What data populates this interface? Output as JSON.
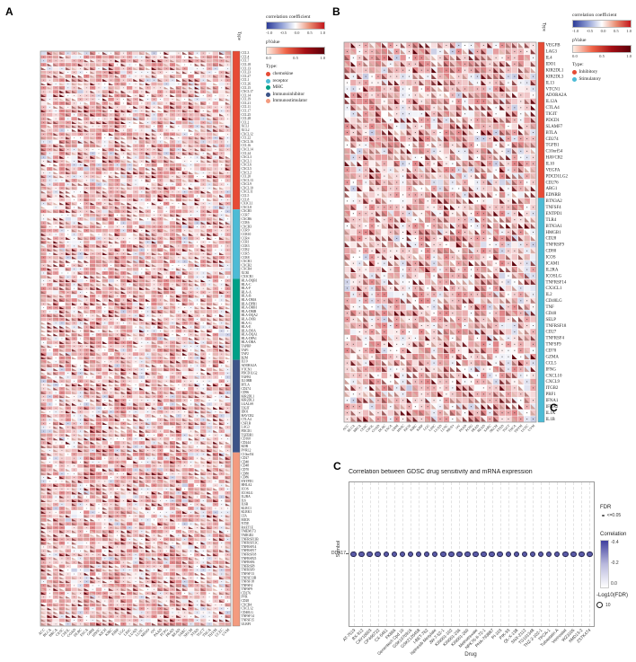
{
  "panels": {
    "a": {
      "label": "A",
      "type_axis_label": "Type",
      "legend": {
        "corr_title": "correlation coefficient",
        "corr_ticks": [
          "-1.0",
          "-0.5",
          "0.0",
          "0.5",
          "1.0"
        ],
        "pval_title": "pValue",
        "pval_ticks": [
          "0.0",
          "0.5",
          "1.0"
        ],
        "type_title": "Type:",
        "items": [
          {
            "label": "chemokine",
            "color": "#E64B35"
          },
          {
            "label": "receptor",
            "color": "#4DBBD5"
          },
          {
            "label": "MHC",
            "color": "#00A087"
          },
          {
            "label": "Immunoinhibitor",
            "color": "#3C5488"
          },
          {
            "label": "Immunostimulator",
            "color": "#F39B7F"
          }
        ]
      }
    },
    "b": {
      "label": "B",
      "type_axis_label": "Type",
      "stray_label": "C",
      "legend": {
        "corr_title": "correlation coefficient",
        "corr_ticks": [
          "-1.0",
          "-0.5",
          "0.0",
          "0.5",
          "1.0"
        ],
        "pval_title": "pValue",
        "pval_ticks": [
          "0.0",
          "0.5",
          "1.0"
        ],
        "type_title": "Type:",
        "items": [
          {
            "label": "Inhibitory",
            "color": "#E64B35"
          },
          {
            "label": "Stimulatory",
            "color": "#4DBBD5"
          }
        ]
      }
    },
    "c": {
      "label": "C",
      "title": "Correlation between GDSC drug sensitivity and mRNA expression",
      "xlabel": "Drug",
      "ylabel": "Symbol",
      "gene": "DDX17",
      "legend": {
        "fdr_title": "FDR",
        "fdr_item": "<=0.05",
        "corr_title": "Correlation",
        "corr_ticks": [
          "-0.4",
          "-0.2",
          "0.0"
        ],
        "size_title": "-Log10(FDR)",
        "size_item": "10"
      }
    }
  },
  "chart_data": [
    {
      "panel": "A",
      "type": "heatmap",
      "cell_glyphs": {
        "square_fill": "correlation coefficient",
        "lower_left_triangle": "pValue",
        "dot": "non-significant marker"
      },
      "corr_range": [
        -1.0,
        1.0
      ],
      "pval_range": [
        0.0,
        1.0
      ],
      "columns": [
        "ACC",
        "BLCA",
        "BRCA",
        "CESC",
        "CHOL",
        "COAD",
        "DLBC",
        "ESCA",
        "GBM",
        "HNSC",
        "KICH",
        "KIRC",
        "KIRP",
        "LGG",
        "LIHC",
        "LUAD",
        "LUSC",
        "MESO",
        "OV",
        "PAAD",
        "PCPG",
        "PRAD",
        "READ",
        "SARC",
        "SKCM",
        "STAD",
        "TGCT",
        "THCA",
        "THYM",
        "UCEC",
        "UVM"
      ],
      "row_groups": [
        {
          "name": "chemokine",
          "color": "#E64B35",
          "genes": [
            "CCL3",
            "CCL4",
            "CCL7",
            "CCL18",
            "CCL13",
            "CCL23",
            "CCL27",
            "CCL1",
            "CCL26",
            "CCL15",
            "CXCL17",
            "CCL14",
            "CCL19",
            "CCL21",
            "CCL11",
            "CCL17",
            "CCL25",
            "CCL28",
            "CCL2",
            "XCL1",
            "XCL2",
            "CXCL12",
            "CCL22",
            "CXCL16",
            "CCL16",
            "CXCL14",
            "CCL24",
            "CXCL3",
            "CXCL1",
            "CXCL6",
            "CXCL5",
            "CXCL2",
            "CCL20",
            "CXCL13",
            "CXCL9",
            "CXCL10",
            "CXCL11",
            "CCL5",
            "CCL8",
            "CX3CL1",
            "CXCL8"
          ]
        },
        {
          "name": "receptor",
          "color": "#4DBBD5",
          "genes": [
            "CXCR5",
            "CCR7",
            "CXCR6",
            "CCR6",
            "CXCR3",
            "CCR9",
            "CCR10",
            "CCR4",
            "CCR1",
            "CCR3",
            "CCR2",
            "CCR5",
            "CCR8",
            "CXCR1",
            "CXCR2",
            "CXCR4",
            "XCR1",
            "CX3CR1"
          ]
        },
        {
          "name": "MHC",
          "color": "#00A087",
          "genes": [
            "HLA-DQB1",
            "HLA-C",
            "HLA-F",
            "HLA-A",
            "HLA-B",
            "HLA-DMA",
            "HLA-DPB1",
            "HLA-DRB1",
            "HLA-DMB",
            "HLA-DQA2",
            "HLA-DOB",
            "HLA-G",
            "HLA-E",
            "HLA-DOA",
            "HLA-DQA1",
            "HLA-DPA1",
            "HLA-DRA",
            "TAPBP",
            "TAP1",
            "TAP2",
            "B2M"
          ]
        },
        {
          "name": "Immunoinhibitor",
          "color": "#3C5488",
          "genes": [
            "IL10",
            "ADORA2A",
            "VTCN1",
            "PDCD1LG2",
            "TGFB1",
            "IL10RB",
            "BTLA",
            "CD274",
            "CD96",
            "KIR2DL1",
            "KIR2DL3",
            "LGALS9",
            "TIGIT",
            "IDO1",
            "HAVCR2",
            "CTLA4",
            "CSF1R",
            "LAG3",
            "PDCD1",
            "TGFBR1",
            "CD160",
            "CD244",
            "KDR",
            "PVRL2"
          ]
        },
        {
          "name": "Immunostimulator",
          "color": "#F39B7F",
          "genes": [
            "C10orf54",
            "CD27",
            "CD40",
            "CD48",
            "CD70",
            "CD80",
            "CD86",
            "ENTPD1",
            "HHLA2",
            "ICOS",
            "ICOSLG",
            "IL2RA",
            "IL6",
            "IL6R",
            "KLRC1",
            "KLRK1",
            "LTA",
            "MICB",
            "NT5E",
            "RAET1E",
            "TMEM173",
            "TMIGD2",
            "TNFRSF13B",
            "TNFRSF13C",
            "TNFRSF14",
            "TNFRSF17",
            "TNFRSF18",
            "TNFRSF25",
            "TNFRSF4",
            "TNFRSF8",
            "TNFRSF9",
            "TNFSF13",
            "TNFSF13B",
            "TNFSF18",
            "TNFSF4",
            "TNFSF9",
            "CD276",
            "PVR",
            "CD28",
            "CXCR4",
            "CXCL12",
            "CD40LG",
            "TNFSF14",
            "TNFSF15",
            "ULBP1"
          ]
        }
      ]
    },
    {
      "panel": "B",
      "type": "heatmap",
      "cell_glyphs": {
        "square_fill": "correlation coefficient",
        "lower_left_triangle": "pValue",
        "dot": "non-significant marker"
      },
      "corr_range": [
        -1.0,
        1.0
      ],
      "pval_range": [
        0.0,
        1.0
      ],
      "columns": [
        "ACC",
        "BLCA",
        "BRCA",
        "CESC",
        "CHOL",
        "COAD",
        "DLBC",
        "ESCA",
        "GBM",
        "HNSC",
        "KICH",
        "KIRC",
        "KIRP",
        "LGG",
        "LIHC",
        "LUAD",
        "LUSC",
        "MESO",
        "OV",
        "PAAD",
        "PCPG",
        "PRAD",
        "READ",
        "SARC",
        "SKCM",
        "STAD",
        "TGCT",
        "THCA",
        "THYM",
        "UCEC",
        "UVM"
      ],
      "row_groups": [
        {
          "name": "Inhibitory",
          "color": "#E64B35",
          "genes": [
            "VEGFB",
            "LAG3",
            "IL4",
            "IDO1",
            "KIR2DL1",
            "KIR2DL3",
            "IL13",
            "VTCN1",
            "ADORA2A",
            "IL12A",
            "CTLA4",
            "TIGIT",
            "PDCD1",
            "SLAMF7",
            "BTLA",
            "CD274",
            "TGFB1",
            "C10orf54",
            "HAVCR2",
            "IL10",
            "VEGFA",
            "PDCD1LG2",
            "CD276",
            "ARG1",
            "EDNRB"
          ]
        },
        {
          "name": "Stimulatory",
          "color": "#4DBBD5",
          "genes": [
            "BTN3A2",
            "TNFSF4",
            "ENTPD1",
            "TLR4",
            "BTN3A1",
            "HMGB1",
            "CD28",
            "TNFRSF9",
            "CD80",
            "ICOS",
            "ICAM1",
            "IL2RA",
            "ICOSLG",
            "TNFRSF14",
            "CX3CL1",
            "IL2",
            "CD40LG",
            "TNF",
            "CD40",
            "SELP",
            "TNFRSF18",
            "CD27",
            "TNFRSF4",
            "TNFSF9",
            "CD70",
            "GZMA",
            "CCL5",
            "IFNG",
            "CXCL10",
            "CXCL9",
            "ITGB2",
            "PRF1",
            "IFNA1",
            "IFNA2",
            "IL1A",
            "IL1B"
          ]
        }
      ]
    },
    {
      "panel": "C",
      "type": "scatter",
      "title": "Correlation between GDSC drug sensitivity and mRNA expression",
      "xlabel": "Drug",
      "ylabel": "Symbol",
      "rows": [
        "DDX17"
      ],
      "categories": [
        "AT-7519",
        "BX-912",
        "CAY10603",
        "CP466722",
        "CX-5461",
        "FK866",
        "Genentech Cpd 10",
        "GSK1070916",
        "GSK2126458",
        "I-BET-762",
        "Ispinesib Mesylate",
        "JW-7-52-1",
        "KIN001-102",
        "KIN001-236",
        "KIN001-260",
        "Methotrexate",
        "NPK76-II-72-1",
        "PHA-793887",
        "PI-103",
        "PIK-93",
        "QL-X-138",
        "SNX-2112",
        "TG101348",
        "THZ-2-102-1",
        "TPCA-1",
        "Tubastatin A",
        "Vorinostat",
        "WZ3105",
        "XMD13-2",
        "ZSTK474"
      ],
      "approx_correlation_all_points": -0.35,
      "dot_color": "#5b5ba8",
      "legend": {
        "fdr": "<=0.05",
        "correlation_scale": [
          -0.4,
          0.0
        ],
        "log10_fdr_size": 10
      }
    }
  ],
  "colors": {
    "corr_negative": "#2c3b97",
    "corr_positive": "#c3161c",
    "pval_low": "#fdeee4",
    "pval_high": "#5c000a",
    "dot_fill": "#5b5ba8"
  }
}
